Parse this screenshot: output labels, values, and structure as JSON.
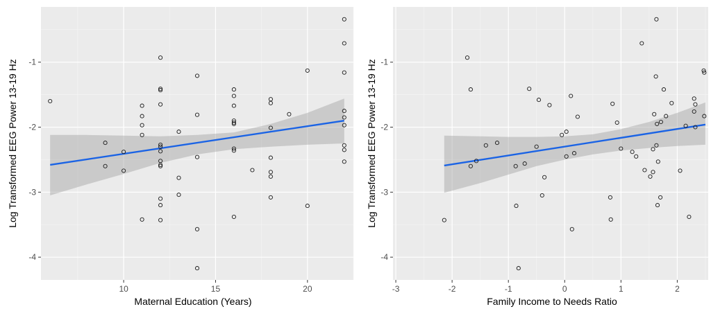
{
  "chart_data": [
    {
      "type": "scatter",
      "title": "",
      "xlabel": "Maternal Education (Years)",
      "ylabel": "Log Transformed EEG Power 13-19 Hz",
      "xlim": [
        5.5,
        22.5
      ],
      "ylim": [
        -4.35,
        -0.15
      ],
      "xticks": [
        10,
        15,
        20
      ],
      "yticks": [
        -4,
        -3,
        -2,
        -1
      ],
      "grid": true,
      "points": [
        [
          6,
          -1.6
        ],
        [
          9,
          -2.24
        ],
        [
          9,
          -2.6
        ],
        [
          10,
          -2.38
        ],
        [
          10,
          -2.67
        ],
        [
          11,
          -1.67
        ],
        [
          11,
          -1.83
        ],
        [
          11,
          -1.97
        ],
        [
          11,
          -2.12
        ],
        [
          11,
          -3.42
        ],
        [
          12,
          -0.93
        ],
        [
          12,
          -1.41
        ],
        [
          12,
          -1.43
        ],
        [
          12,
          -1.65
        ],
        [
          12,
          -2.27
        ],
        [
          12,
          -2.3
        ],
        [
          12,
          -2.37
        ],
        [
          12,
          -2.52
        ],
        [
          12,
          -2.58
        ],
        [
          12,
          -2.6
        ],
        [
          12,
          -3.1
        ],
        [
          12,
          -3.2
        ],
        [
          12,
          -3.43
        ],
        [
          13,
          -2.07
        ],
        [
          13,
          -2.78
        ],
        [
          13,
          -3.04
        ],
        [
          14,
          -1.21
        ],
        [
          14,
          -1.81
        ],
        [
          14,
          -2.46
        ],
        [
          14,
          -3.57
        ],
        [
          14,
          -4.17
        ],
        [
          16,
          -1.42
        ],
        [
          16,
          -1.52
        ],
        [
          16,
          -1.67
        ],
        [
          16,
          -1.9
        ],
        [
          16,
          -1.93
        ],
        [
          16,
          -1.95
        ],
        [
          16,
          -2.33
        ],
        [
          16,
          -2.36
        ],
        [
          16,
          -3.38
        ],
        [
          17,
          -2.66
        ],
        [
          18,
          -1.57
        ],
        [
          18,
          -1.63
        ],
        [
          18,
          -2.01
        ],
        [
          18,
          -2.47
        ],
        [
          18,
          -2.69
        ],
        [
          18,
          -2.76
        ],
        [
          18,
          -3.08
        ],
        [
          19,
          -1.8
        ],
        [
          20,
          -1.13
        ],
        [
          20,
          -3.21
        ],
        [
          22,
          -0.34
        ],
        [
          22,
          -0.71
        ],
        [
          22,
          -1.16
        ],
        [
          22,
          -1.75
        ],
        [
          22,
          -1.85
        ],
        [
          22,
          -1.97
        ],
        [
          22,
          -2.28
        ],
        [
          22,
          -2.35
        ],
        [
          22,
          -2.53
        ]
      ],
      "fit_line": {
        "x": [
          6,
          22
        ],
        "y": [
          -2.58,
          -1.9
        ],
        "color": "#1a63e5"
      },
      "ci_band": {
        "x": [
          6,
          8,
          10,
          12,
          14,
          16,
          18,
          20,
          22
        ],
        "lower": [
          -3.05,
          -2.88,
          -2.72,
          -2.55,
          -2.42,
          -2.34,
          -2.3,
          -2.27,
          -2.25
        ],
        "upper": [
          -2.12,
          -2.12,
          -2.13,
          -2.14,
          -2.12,
          -2.08,
          -1.95,
          -1.78,
          -1.56
        ]
      }
    },
    {
      "type": "scatter",
      "title": "",
      "xlabel": "Family Income to Needs Ratio",
      "ylabel": "Log Transformed EEG Power 13-19 Hz",
      "xlim": [
        -3.05,
        2.55
      ],
      "ylim": [
        -4.35,
        -0.15
      ],
      "xticks": [
        -3,
        -2,
        -1,
        0,
        1,
        2
      ],
      "yticks": [
        -4,
        -3,
        -2,
        -1
      ],
      "grid": true,
      "points": [
        [
          -2.14,
          -3.43
        ],
        [
          -1.73,
          -0.93
        ],
        [
          -1.67,
          -1.42
        ],
        [
          -1.67,
          -2.6
        ],
        [
          -1.57,
          -2.52
        ],
        [
          -1.4,
          -2.28
        ],
        [
          -1.2,
          -2.24
        ],
        [
          -0.87,
          -2.6
        ],
        [
          -0.86,
          -3.21
        ],
        [
          -0.82,
          -4.17
        ],
        [
          -0.71,
          -2.56
        ],
        [
          -0.63,
          -1.41
        ],
        [
          -0.5,
          -2.3
        ],
        [
          -0.46,
          -1.58
        ],
        [
          -0.4,
          -3.05
        ],
        [
          -0.36,
          -2.77
        ],
        [
          -0.27,
          -1.66
        ],
        [
          -0.05,
          -2.12
        ],
        [
          0.03,
          -2.07
        ],
        [
          0.03,
          -2.45
        ],
        [
          0.11,
          -1.52
        ],
        [
          0.13,
          -3.57
        ],
        [
          0.17,
          -2.4
        ],
        [
          0.23,
          -1.84
        ],
        [
          0.81,
          -3.08
        ],
        [
          0.82,
          -3.42
        ],
        [
          0.85,
          -1.64
        ],
        [
          0.93,
          -1.93
        ],
        [
          1.0,
          -2.33
        ],
        [
          1.2,
          -2.38
        ],
        [
          1.27,
          -2.45
        ],
        [
          1.37,
          -0.71
        ],
        [
          1.42,
          -2.66
        ],
        [
          1.52,
          -2.76
        ],
        [
          1.57,
          -2.69
        ],
        [
          1.57,
          -2.34
        ],
        [
          1.59,
          -1.8
        ],
        [
          1.62,
          -1.22
        ],
        [
          1.63,
          -0.34
        ],
        [
          1.63,
          -2.28
        ],
        [
          1.64,
          -1.95
        ],
        [
          1.65,
          -3.2
        ],
        [
          1.66,
          -2.53
        ],
        [
          1.71,
          -1.92
        ],
        [
          1.7,
          -3.08
        ],
        [
          1.76,
          -1.42
        ],
        [
          1.8,
          -1.83
        ],
        [
          1.9,
          -1.63
        ],
        [
          2.05,
          -2.67
        ],
        [
          2.15,
          -1.98
        ],
        [
          2.21,
          -3.38
        ],
        [
          2.3,
          -1.56
        ],
        [
          2.3,
          -1.76
        ],
        [
          2.32,
          -1.65
        ],
        [
          2.32,
          -2.0
        ],
        [
          2.47,
          -1.13
        ],
        [
          2.48,
          -1.16
        ],
        [
          2.48,
          -1.83
        ]
      ],
      "fit_line": {
        "x": [
          -2.14,
          2.5
        ],
        "y": [
          -2.59,
          -1.96
        ],
        "color": "#1a63e5"
      },
      "ci_band": {
        "x": [
          -2.14,
          -1.5,
          -1.0,
          -0.5,
          0,
          0.5,
          1.0,
          1.5,
          2.0,
          2.5
        ],
        "lower": [
          -3.01,
          -2.86,
          -2.73,
          -2.6,
          -2.5,
          -2.42,
          -2.36,
          -2.32,
          -2.29,
          -2.27
        ],
        "upper": [
          -2.13,
          -2.14,
          -2.15,
          -2.15,
          -2.14,
          -2.11,
          -2.03,
          -1.92,
          -1.78,
          -1.62
        ]
      }
    }
  ]
}
